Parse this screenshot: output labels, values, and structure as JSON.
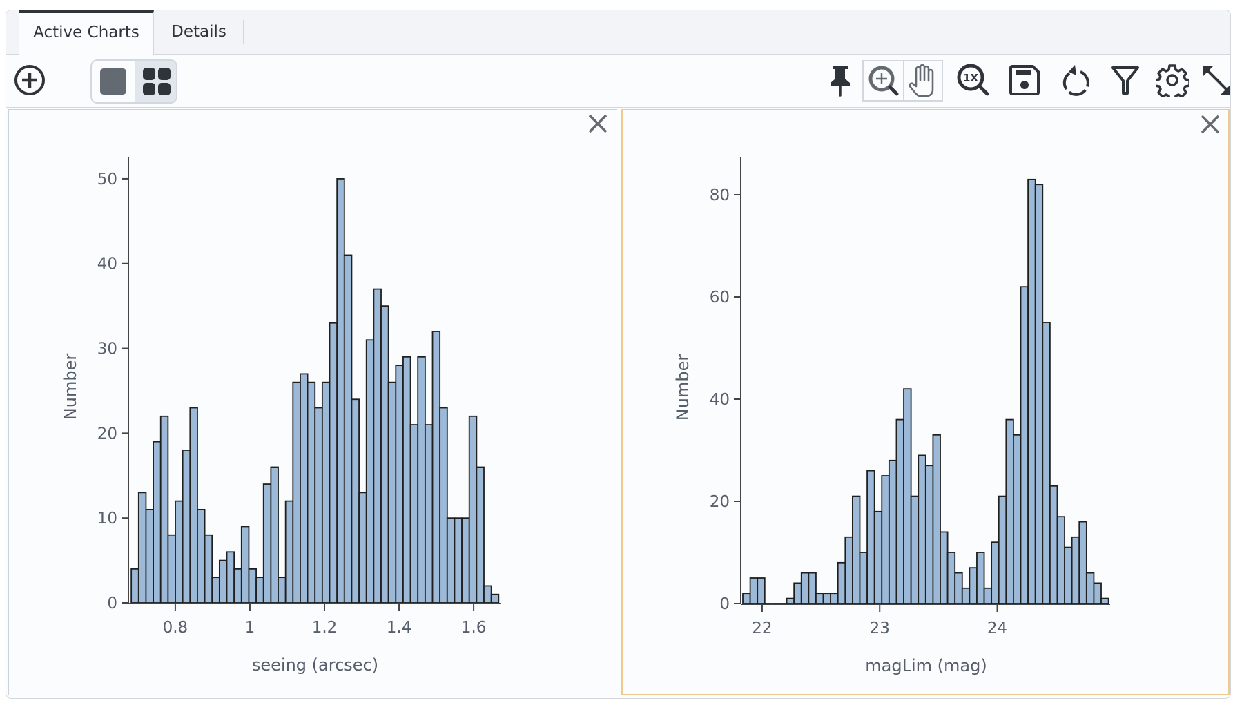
{
  "tabs": [
    {
      "label": "Active Charts",
      "active": true
    },
    {
      "label": "Details",
      "active": false
    }
  ],
  "toolbar": {
    "left": [
      {
        "icon": "add-circle-icon"
      },
      {
        "icon": "single-view-icon"
      },
      {
        "icon": "grid-view-icon",
        "selected": true
      }
    ],
    "right": [
      {
        "icon": "pin-icon"
      },
      {
        "icon": "zoom-in-icon"
      },
      {
        "icon": "pan-hand-icon"
      },
      {
        "icon": "zoom-reset-1x-icon"
      },
      {
        "icon": "save-icon"
      },
      {
        "icon": "restore-icon"
      },
      {
        "icon": "filter-icon"
      },
      {
        "icon": "settings-gear-icon"
      },
      {
        "icon": "expand-icon"
      }
    ]
  },
  "colors": {
    "bar_fill": "#9db9d8",
    "bar_stroke": "#1f1f1f",
    "selected_border": "#f0c98c",
    "text": "#555e6a"
  },
  "chart_data": [
    {
      "type": "bar",
      "subtype": "histogram",
      "xlabel": "seeing (arcsec)",
      "ylabel": "Number",
      "xlim": [
        0.678,
        1.672
      ],
      "ylim": [
        0,
        52.6
      ],
      "xticks": [
        0.8,
        1,
        1.2,
        1.4,
        1.6
      ],
      "xtick_labels": [
        "0.8",
        "1",
        "1.2",
        "1.4",
        "1.6"
      ],
      "yticks": [
        0,
        10,
        20,
        30,
        40,
        50
      ],
      "ytick_labels": [
        "0",
        "10",
        "20",
        "30",
        "40",
        "50"
      ],
      "bin_start": 0.682,
      "bin_width": 0.0197,
      "values": [
        4,
        13,
        11,
        19,
        22,
        8,
        12,
        18,
        23,
        11,
        8,
        3,
        5,
        6,
        4,
        9,
        4,
        3,
        14,
        16,
        3,
        12,
        26,
        27,
        26,
        23,
        26,
        33,
        50,
        41,
        24,
        13,
        31,
        37,
        35,
        26,
        28,
        29,
        21,
        29,
        21,
        32,
        23,
        10,
        10,
        10,
        22,
        16,
        2,
        1
      ]
    },
    {
      "type": "bar",
      "subtype": "histogram",
      "xlabel": "magLim (mag)",
      "ylabel": "Number",
      "xlim": [
        21.83,
        24.96
      ],
      "ylim": [
        0,
        87.3
      ],
      "xticks": [
        22,
        23,
        24
      ],
      "xtick_labels": [
        "22",
        "23",
        "24"
      ],
      "yticks": [
        0,
        20,
        40,
        60,
        80
      ],
      "ytick_labels": [
        "0",
        "20",
        "40",
        "60",
        "80"
      ],
      "bin_start": 21.836,
      "bin_width": 0.0622,
      "values": [
        2,
        5,
        5,
        0,
        0,
        0,
        1,
        4,
        6,
        6,
        2,
        2,
        2,
        8,
        13,
        21,
        10,
        26,
        18,
        25,
        28,
        36,
        42,
        21,
        29,
        27,
        33,
        14,
        10,
        6,
        3,
        7,
        10,
        3,
        12,
        21,
        36,
        33,
        62,
        83,
        82,
        55,
        23,
        17,
        11,
        13,
        16,
        6,
        4,
        1
      ]
    }
  ]
}
